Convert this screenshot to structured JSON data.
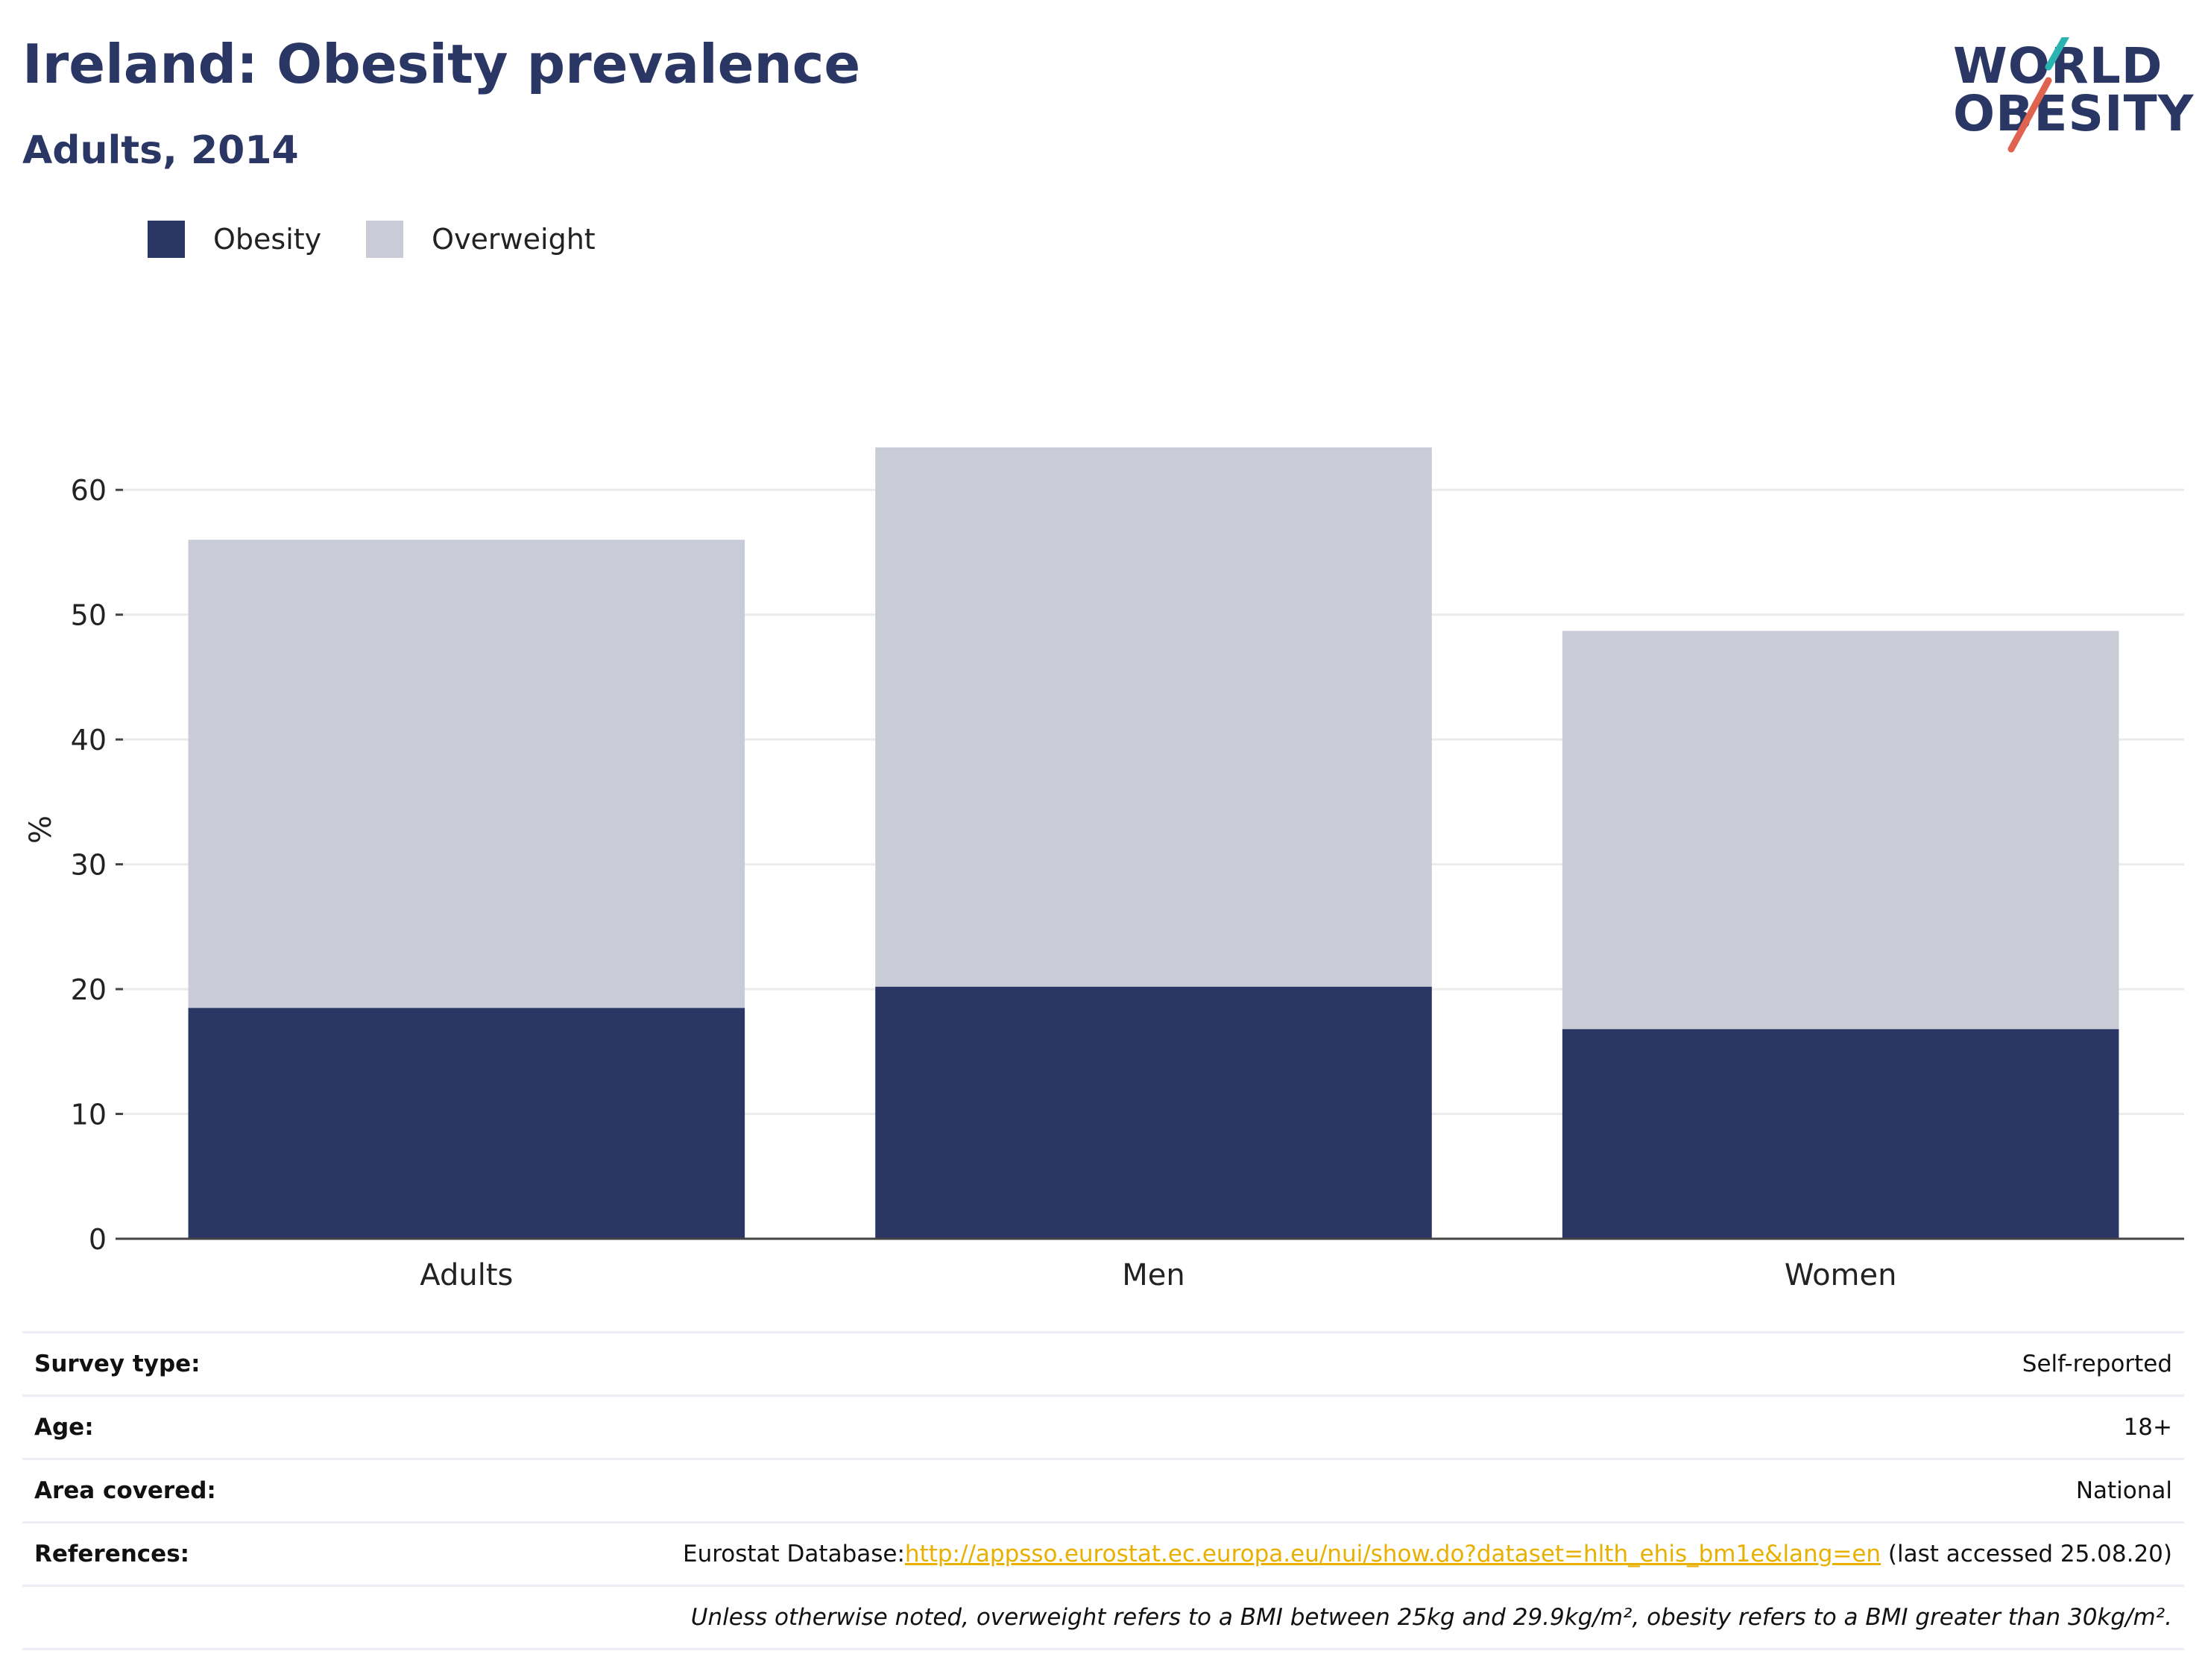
{
  "header": {
    "title": "Ireland: Obesity prevalence",
    "subtitle": "Adults, 2014"
  },
  "logo": {
    "line1": "WORLD",
    "line2": "OBESITY",
    "accent_teal": "#2bb3b1",
    "accent_red": "#e0634f"
  },
  "chart_data": {
    "type": "bar",
    "stacked": true,
    "categories": [
      "Adults",
      "Men",
      "Women"
    ],
    "series": [
      {
        "name": "Obesity",
        "color": "#2a3664",
        "values": [
          18.5,
          20.2,
          16.8
        ]
      },
      {
        "name": "Overweight",
        "color": "#c9cbd7",
        "values": [
          37.5,
          43.2,
          31.9
        ]
      }
    ],
    "ylabel": "%",
    "xlabel": "",
    "ylim": [
      0,
      67
    ],
    "yticks": [
      0,
      10,
      20,
      30,
      40,
      50,
      60
    ],
    "grid": true,
    "legend": "top-left"
  },
  "info": {
    "survey_type": {
      "label": "Survey type:",
      "value": "Self-reported"
    },
    "age": {
      "label": "Age:",
      "value": "18+"
    },
    "area": {
      "label": "Area covered:",
      "value": "National"
    },
    "references": {
      "label": "References:",
      "prefix": "Eurostat Database:",
      "link": "http://appsso.eurostat.ec.europa.eu/nui/show.do?dataset=hlth_ehis_bm1e&lang=en",
      "suffix": " (last accessed 25.08.20)"
    },
    "note": "Unless otherwise noted, overweight refers to a BMI between 25kg and 29.9kg/m², obesity refers to a BMI greater than 30kg/m²."
  }
}
